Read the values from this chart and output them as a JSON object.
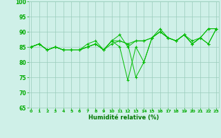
{
  "series": [
    [
      85,
      86,
      84,
      85,
      84,
      84,
      84,
      85,
      86,
      84,
      87,
      89,
      85,
      87,
      87,
      88,
      91,
      88,
      87,
      89,
      86,
      88,
      91,
      91
    ],
    [
      85,
      86,
      84,
      85,
      84,
      84,
      84,
      86,
      87,
      84,
      87,
      87,
      86,
      87,
      87,
      88,
      90,
      88,
      87,
      89,
      87,
      88,
      91,
      91
    ],
    [
      85,
      86,
      84,
      85,
      84,
      84,
      84,
      85,
      86,
      84,
      87,
      85,
      74,
      85,
      80,
      88,
      90,
      88,
      87,
      89,
      86,
      88,
      86,
      91
    ],
    [
      85,
      86,
      84,
      85,
      84,
      84,
      84,
      85,
      86,
      84,
      86,
      87,
      86,
      75,
      80,
      88,
      90,
      88,
      87,
      89,
      86,
      88,
      86,
      91
    ]
  ],
  "x_start": 0,
  "x_end": 23,
  "ylim": [
    65,
    100
  ],
  "yticks": [
    65,
    70,
    75,
    80,
    85,
    90,
    95,
    100
  ],
  "xticks": [
    0,
    1,
    2,
    3,
    4,
    5,
    6,
    7,
    8,
    9,
    10,
    11,
    12,
    13,
    14,
    15,
    16,
    17,
    18,
    19,
    20,
    21,
    22,
    23
  ],
  "xlabel": "Humidité relative (%)",
  "line_color": "#00bb00",
  "bg_color": "#cff0e8",
  "grid_color": "#99ccbb",
  "tick_color": "#00aa00",
  "label_color": "#007700",
  "figsize": [
    3.2,
    2.0
  ],
  "dpi": 100
}
